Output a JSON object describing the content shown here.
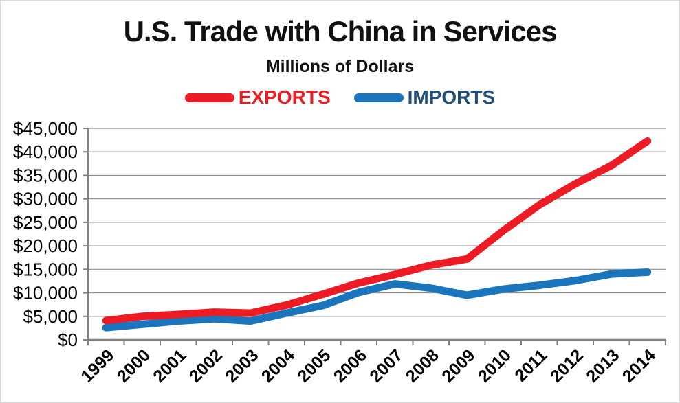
{
  "title": "U.S. Trade with China in Services",
  "subtitle": "Millions of Dollars",
  "legend": [
    {
      "label": "EXPORTS",
      "swatch_color": "#ED1C24",
      "label_color": "#ED1C24"
    },
    {
      "label": "IMPORTS",
      "swatch_color": "#1B75BC",
      "label_color": "#1F4E79"
    }
  ],
  "colors": {
    "exports_line": "#ED1C24",
    "imports_line": "#1B75BC",
    "gridline": "#8C8C8C",
    "axis": "#808080",
    "text": "#000000",
    "background": "#FFFFFF"
  },
  "chart_data": {
    "type": "line",
    "title": "U.S. Trade with China in Services",
    "subtitle": "Millions of Dollars",
    "unit": "Millions of Dollars",
    "x": [
      "1999",
      "2000",
      "2001",
      "2002",
      "2003",
      "2004",
      "2005",
      "2006",
      "2007",
      "2008",
      "2009",
      "2010",
      "2011",
      "2012",
      "2013",
      "2014"
    ],
    "series": [
      {
        "name": "EXPORTS",
        "color": "#ED1C24",
        "values": [
          4100,
          5000,
          5400,
          5900,
          5700,
          7400,
          9700,
          12100,
          13900,
          15900,
          17200,
          23200,
          28700,
          33200,
          37100,
          42300
        ]
      },
      {
        "name": "IMPORTS",
        "color": "#1B75BC",
        "values": [
          2600,
          3300,
          4000,
          4500,
          4000,
          5700,
          7300,
          10100,
          11900,
          11000,
          9500,
          10800,
          11600,
          12600,
          14000,
          14400
        ]
      }
    ],
    "ylim": [
      0,
      45000
    ],
    "ytick_step": 5000,
    "ytick_labels": [
      "$0",
      "$5,000",
      "$10,000",
      "$15,000",
      "$20,000",
      "$25,000",
      "$30,000",
      "$35,000",
      "$40,000",
      "$45,000"
    ],
    "xlabel": "",
    "ylabel": "",
    "grid": "horizontal",
    "legend_position": "top-center",
    "x_tick_label_rotation": -45
  }
}
